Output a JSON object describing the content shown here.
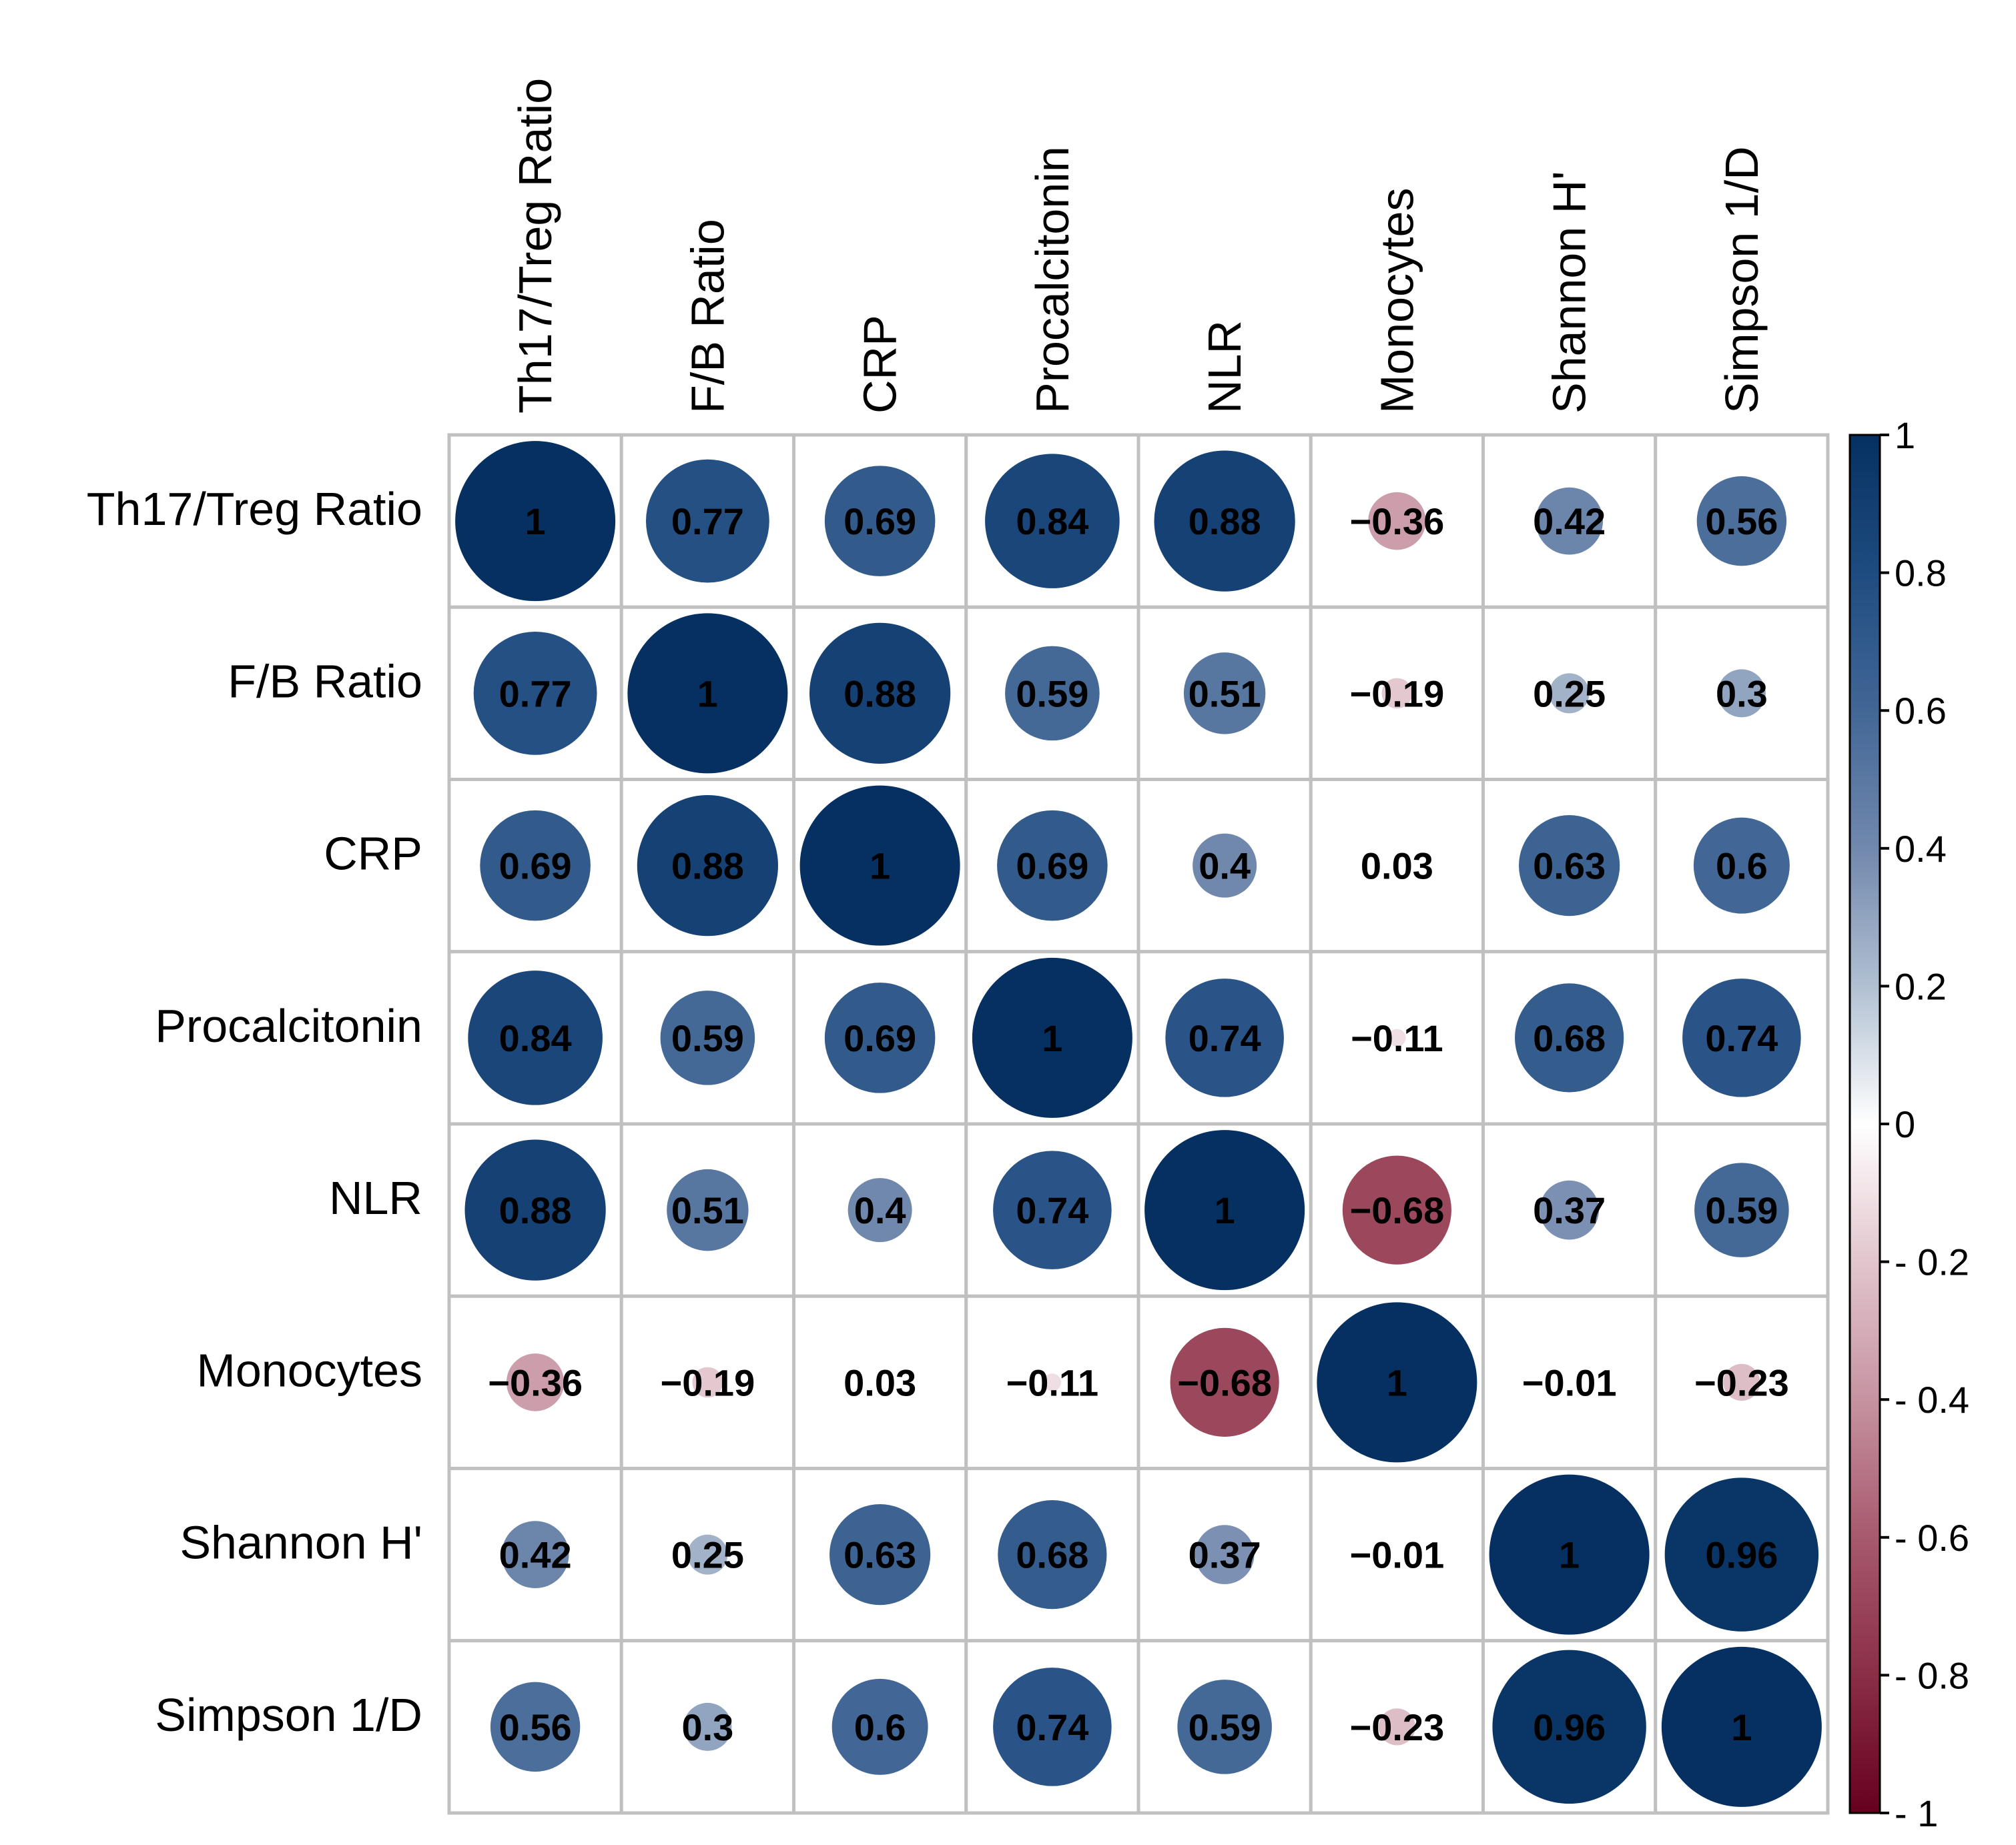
{
  "chart_data": {
    "type": "heatmap",
    "variables": [
      "Th17/Treg Ratio",
      "F/B Ratio",
      "CRP",
      "Procalcitonin",
      "NLR",
      "Monocytes",
      "Shannon H'",
      "Simpson 1/D"
    ],
    "matrix": [
      [
        1,
        0.77,
        0.69,
        0.84,
        0.88,
        -0.36,
        0.42,
        0.56
      ],
      [
        0.77,
        1,
        0.88,
        0.59,
        0.51,
        -0.19,
        0.25,
        0.3
      ],
      [
        0.69,
        0.88,
        1,
        0.69,
        0.4,
        0.03,
        0.63,
        0.6
      ],
      [
        0.84,
        0.59,
        0.69,
        1,
        0.74,
        -0.11,
        0.68,
        0.74
      ],
      [
        0.88,
        0.51,
        0.4,
        0.74,
        1,
        -0.68,
        0.37,
        0.59
      ],
      [
        -0.36,
        -0.19,
        0.03,
        -0.11,
        -0.68,
        1,
        -0.01,
        -0.23
      ],
      [
        0.42,
        0.25,
        0.63,
        0.68,
        0.37,
        -0.01,
        1,
        0.96
      ],
      [
        0.56,
        0.3,
        0.6,
        0.74,
        0.59,
        -0.23,
        0.96,
        1
      ]
    ],
    "cell_labels": [
      [
        "1",
        "0.77",
        "0.69",
        "0.84",
        "0.88",
        "−0.36",
        "0.42",
        "0.56"
      ],
      [
        "0.77",
        "1",
        "0.88",
        "0.59",
        "0.51",
        "−0.19",
        "0.25",
        "0.3"
      ],
      [
        "0.69",
        "0.88",
        "1",
        "0.69",
        "0.4",
        "0.03",
        "0.63",
        "0.6"
      ],
      [
        "0.84",
        "0.59",
        "0.69",
        "1",
        "0.74",
        "−0.11",
        "0.68",
        "0.74"
      ],
      [
        "0.88",
        "0.51",
        "0.4",
        "0.74",
        "1",
        "−0.68",
        "0.37",
        "0.59"
      ],
      [
        "−0.36",
        "−0.19",
        "0.03",
        "−0.11",
        "−0.68",
        "1",
        "−0.01",
        "−0.23"
      ],
      [
        "0.42",
        "0.25",
        "0.63",
        "0.68",
        "0.37",
        "−0.01",
        "1",
        "0.96"
      ],
      [
        "0.56",
        "0.3",
        "0.6",
        "0.74",
        "0.59",
        "−0.23",
        "0.96",
        "1"
      ]
    ],
    "color_scale": {
      "range": [
        -1,
        1
      ],
      "ticks": [
        1,
        0.8,
        0.6,
        0.4,
        0.2,
        0,
        -0.2,
        -0.4,
        -0.6,
        -0.8,
        -1
      ],
      "tick_labels": [
        "1",
        "0.8",
        "0.6",
        "0.4",
        "0.2",
        "0",
        "- 0.2",
        "- 0.4",
        "- 0.6",
        "- 0.8",
        "- 1"
      ],
      "colors": {
        "negative": "#67001f",
        "neutral": "#ffffff",
        "positive": "#053061"
      }
    },
    "marker": "circle, size proportional to |r|",
    "legend_placement": "right",
    "grid": true
  }
}
